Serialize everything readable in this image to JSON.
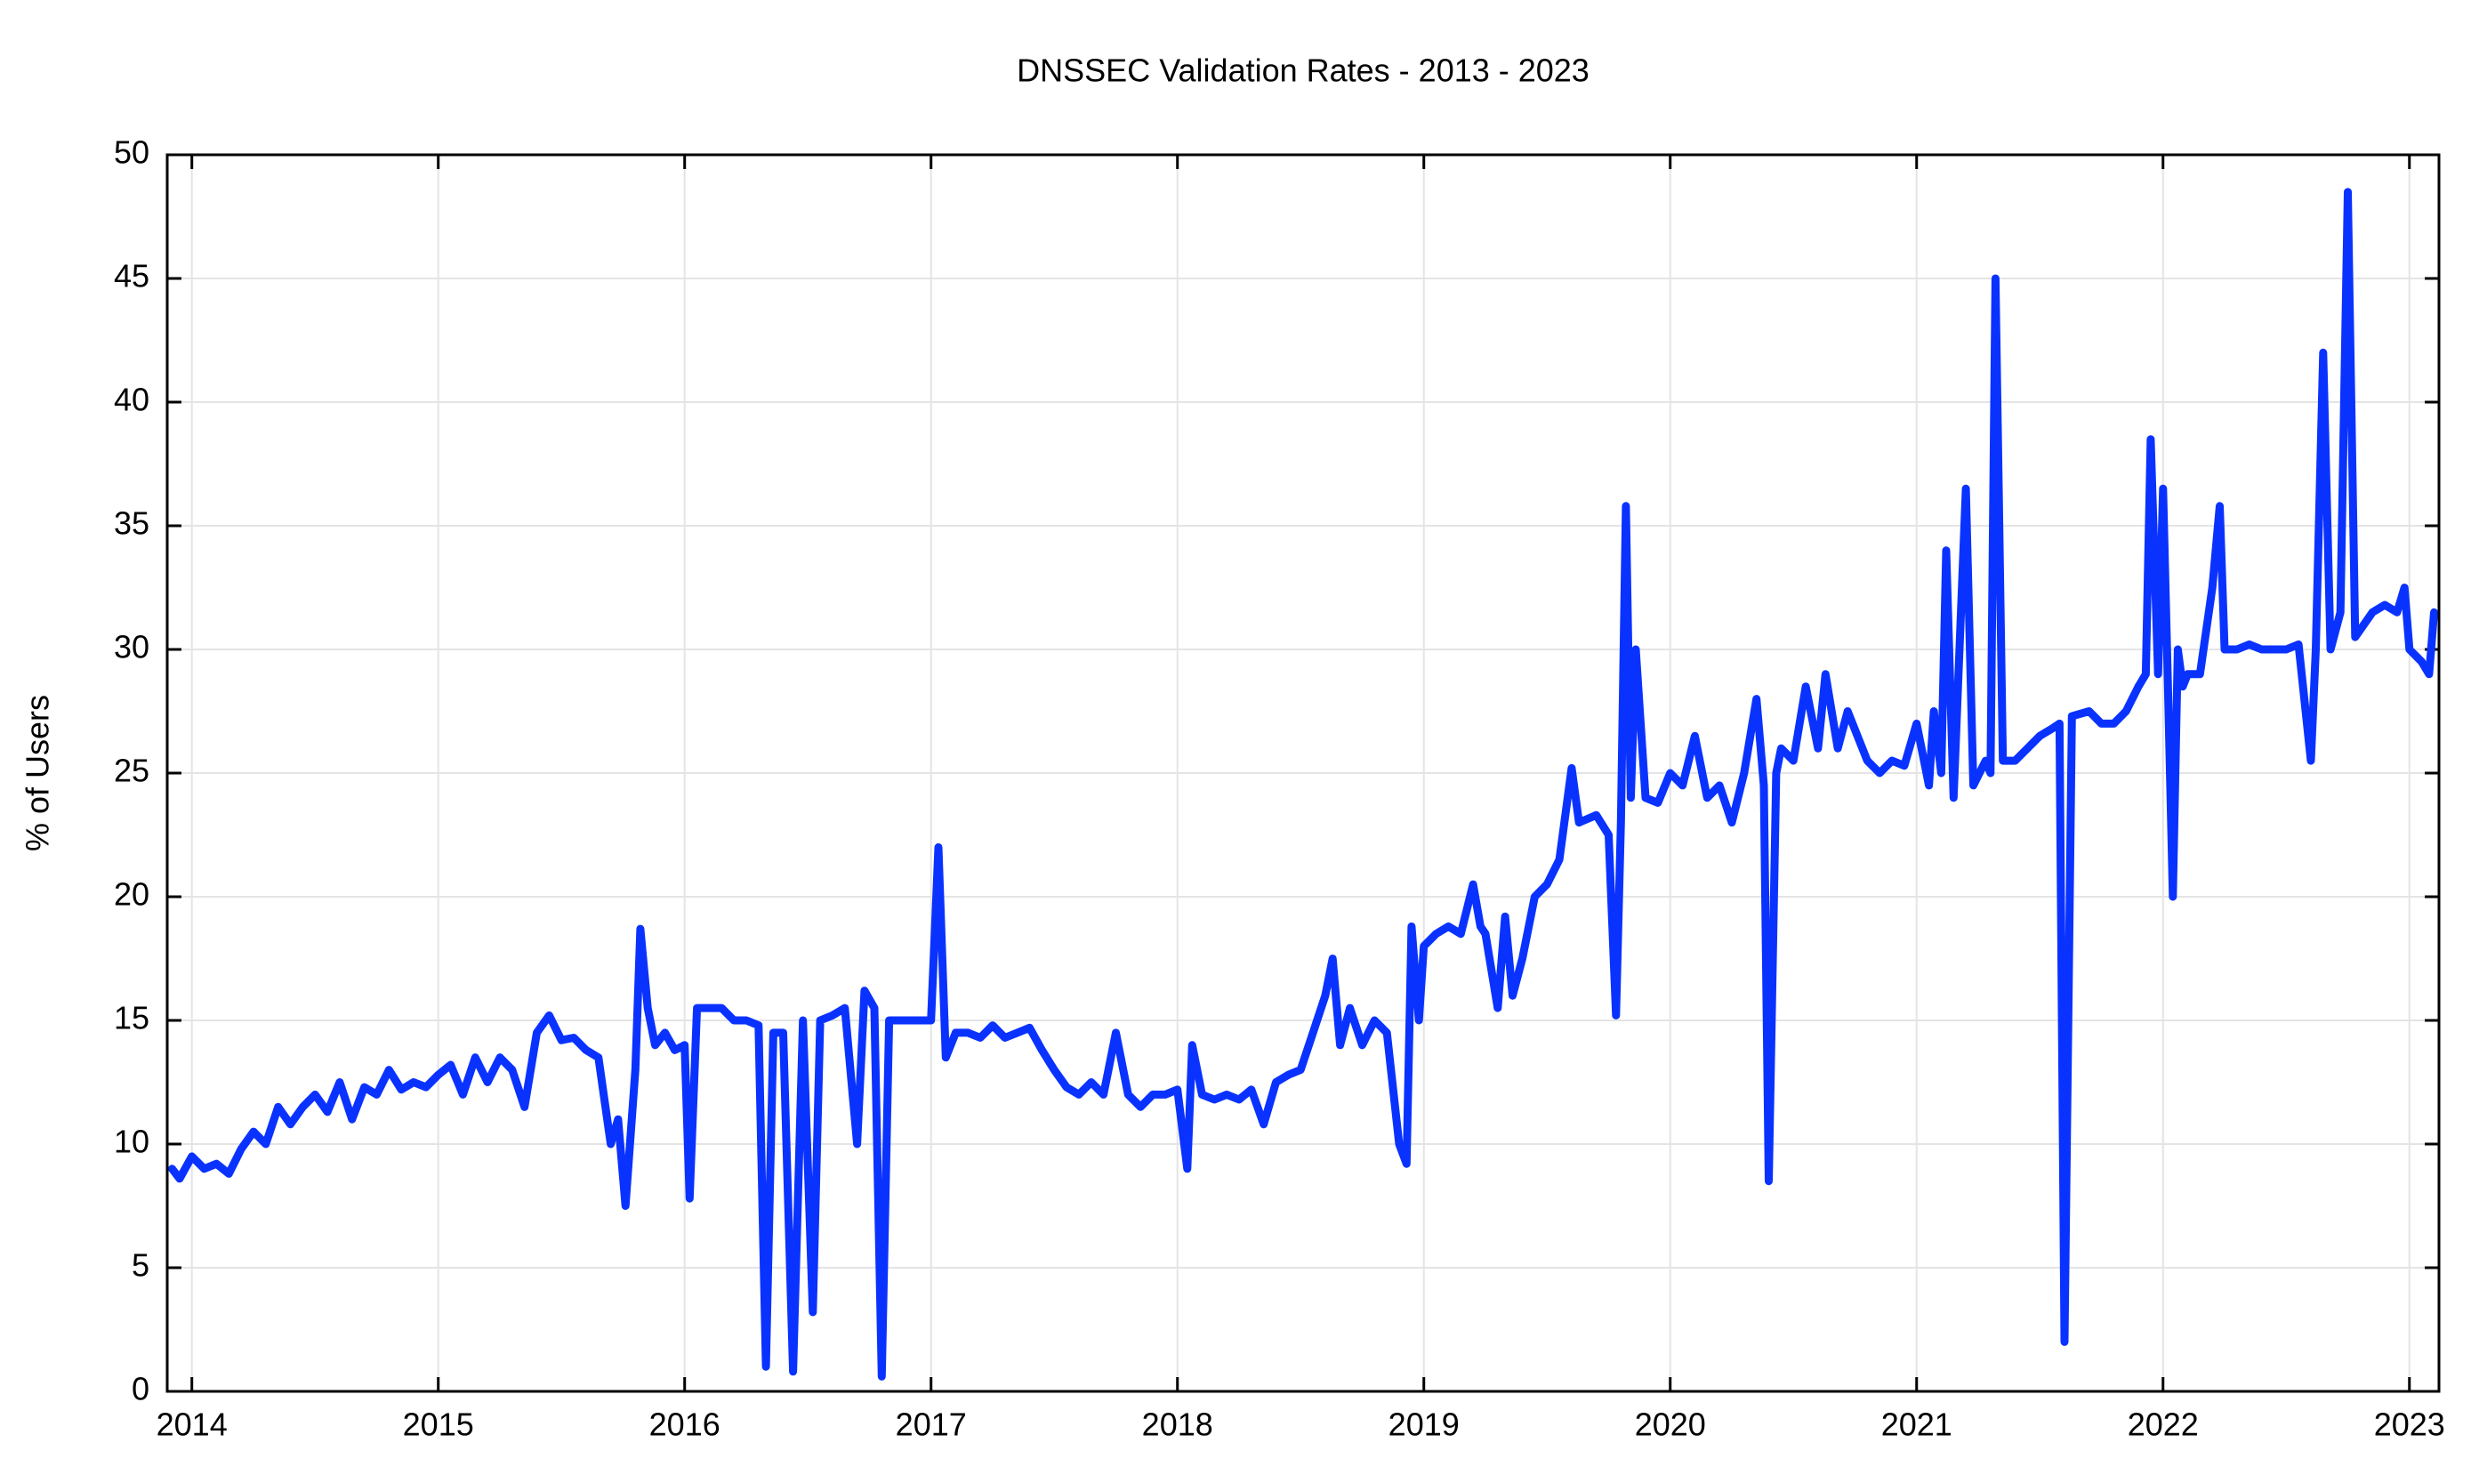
{
  "chart_data": {
    "type": "line",
    "title": "DNSSEC Validation Rates - 2013 - 2023",
    "y_label": "% of Users",
    "color": "#0a32ff",
    "grid": true,
    "xlim": [
      2013.9,
      2023.12
    ],
    "xticks": [
      2014,
      2015,
      2016,
      2017,
      2018,
      2019,
      2020,
      2021,
      2022,
      2023
    ],
    "ylim": [
      0,
      50
    ],
    "yticks": [
      0,
      5,
      10,
      15,
      20,
      25,
      30,
      35,
      40,
      45,
      50
    ],
    "x": [
      2013.92,
      2013.95,
      2014.0,
      2014.05,
      2014.1,
      2014.15,
      2014.2,
      2014.25,
      2014.3,
      2014.35,
      2014.4,
      2014.45,
      2014.5,
      2014.55,
      2014.6,
      2014.65,
      2014.7,
      2014.75,
      2014.8,
      2014.85,
      2014.9,
      2014.95,
      2015.0,
      2015.05,
      2015.1,
      2015.15,
      2015.2,
      2015.25,
      2015.3,
      2015.35,
      2015.4,
      2015.45,
      2015.5,
      2015.55,
      2015.6,
      2015.65,
      2015.7,
      2015.73,
      2015.76,
      2015.8,
      2015.82,
      2015.85,
      2015.88,
      2015.92,
      2015.96,
      2016.0,
      2016.02,
      2016.05,
      2016.1,
      2016.15,
      2016.2,
      2016.25,
      2016.3,
      2016.33,
      2016.36,
      2016.4,
      2016.44,
      2016.48,
      2016.52,
      2016.55,
      2016.6,
      2016.65,
      2016.7,
      2016.73,
      2016.77,
      2016.8,
      2016.83,
      2016.9,
      2016.95,
      2017.0,
      2017.03,
      2017.06,
      2017.1,
      2017.15,
      2017.2,
      2017.25,
      2017.3,
      2017.35,
      2017.4,
      2017.45,
      2017.5,
      2017.55,
      2017.6,
      2017.65,
      2017.7,
      2017.75,
      2017.8,
      2017.85,
      2017.9,
      2017.95,
      2018.0,
      2018.04,
      2018.06,
      2018.1,
      2018.15,
      2018.2,
      2018.25,
      2018.3,
      2018.35,
      2018.4,
      2018.45,
      2018.5,
      2018.55,
      2018.6,
      2018.63,
      2018.66,
      2018.7,
      2018.75,
      2018.8,
      2018.85,
      2018.9,
      2018.93,
      2018.95,
      2018.98,
      2019.0,
      2019.05,
      2019.1,
      2019.15,
      2019.2,
      2019.23,
      2019.25,
      2019.3,
      2019.33,
      2019.36,
      2019.4,
      2019.45,
      2019.5,
      2019.55,
      2019.6,
      2019.63,
      2019.7,
      2019.75,
      2019.78,
      2019.8,
      2019.82,
      2019.84,
      2019.86,
      2019.9,
      2019.95,
      2020.0,
      2020.05,
      2020.1,
      2020.15,
      2020.2,
      2020.25,
      2020.3,
      2020.35,
      2020.38,
      2020.4,
      2020.43,
      2020.45,
      2020.5,
      2020.55,
      2020.6,
      2020.63,
      2020.68,
      2020.72,
      2020.8,
      2020.85,
      2020.9,
      2020.95,
      2021.0,
      2021.05,
      2021.07,
      2021.1,
      2021.12,
      2021.15,
      2021.2,
      2021.23,
      2021.28,
      2021.3,
      2021.32,
      2021.35,
      2021.4,
      2021.45,
      2021.5,
      2021.55,
      2021.58,
      2021.6,
      2021.63,
      2021.7,
      2021.75,
      2021.8,
      2021.85,
      2021.9,
      2021.93,
      2021.95,
      2021.98,
      2022.0,
      2022.02,
      2022.04,
      2022.06,
      2022.08,
      2022.1,
      2022.15,
      2022.2,
      2022.23,
      2022.25,
      2022.3,
      2022.35,
      2022.4,
      2022.5,
      2022.55,
      2022.6,
      2022.62,
      2022.65,
      2022.68,
      2022.72,
      2022.75,
      2022.78,
      2022.85,
      2022.9,
      2022.95,
      2022.98,
      2023.0,
      2023.05,
      2023.08,
      2023.1
    ],
    "values": [
      9.0,
      8.6,
      9.5,
      9.0,
      9.2,
      8.8,
      9.8,
      10.5,
      10.0,
      11.5,
      10.8,
      11.5,
      12.0,
      11.3,
      12.5,
      11.0,
      12.3,
      12.0,
      13.0,
      12.2,
      12.5,
      12.3,
      12.8,
      13.2,
      12.0,
      13.5,
      12.5,
      13.5,
      13.0,
      11.5,
      14.5,
      15.2,
      14.2,
      14.3,
      13.8,
      13.5,
      10.0,
      11.0,
      7.5,
      13.0,
      18.7,
      15.5,
      14.0,
      14.5,
      13.8,
      14.0,
      7.8,
      15.5,
      15.5,
      15.5,
      15.0,
      15.0,
      14.8,
      1.0,
      14.5,
      14.5,
      0.8,
      15.0,
      3.2,
      15.0,
      15.2,
      15.5,
      10.0,
      16.2,
      15.5,
      0.6,
      15.0,
      15.0,
      15.0,
      15.0,
      22.0,
      13.5,
      14.5,
      14.5,
      14.3,
      14.8,
      14.3,
      14.5,
      14.7,
      13.8,
      13.0,
      12.3,
      12.0,
      12.5,
      12.0,
      14.5,
      12.0,
      11.5,
      12.0,
      12.0,
      12.2,
      9.0,
      14.0,
      12.0,
      11.8,
      12.0,
      11.8,
      12.2,
      10.8,
      12.5,
      12.8,
      13.0,
      14.5,
      16.0,
      17.5,
      14.0,
      15.5,
      14.0,
      15.0,
      14.5,
      10.0,
      9.2,
      18.8,
      15.0,
      18.0,
      18.5,
      18.8,
      18.5,
      20.5,
      18.8,
      18.5,
      15.5,
      19.2,
      16.0,
      17.5,
      20.0,
      20.5,
      21.5,
      25.2,
      23.0,
      23.3,
      22.5,
      15.2,
      23.0,
      35.8,
      24.0,
      30.0,
      24.0,
      23.8,
      25.0,
      24.5,
      26.5,
      24.0,
      24.5,
      23.0,
      25.0,
      28.0,
      24.5,
      8.5,
      25.0,
      26.0,
      25.5,
      28.5,
      26.0,
      29.0,
      26.0,
      27.5,
      25.5,
      25.0,
      25.5,
      25.3,
      27.0,
      24.5,
      27.5,
      25.0,
      34.0,
      24.0,
      36.5,
      24.5,
      25.5,
      25.0,
      45.0,
      25.5,
      25.5,
      26.0,
      26.5,
      26.8,
      27.0,
      2.0,
      27.3,
      27.5,
      27.0,
      27.0,
      27.5,
      28.5,
      29.0,
      38.5,
      29.0,
      36.5,
      28.5,
      20.0,
      30.0,
      28.5,
      29.0,
      29.0,
      32.5,
      35.8,
      30.0,
      30.0,
      30.2,
      30.0,
      30.0,
      30.2,
      25.5,
      30.0,
      42.0,
      30.0,
      31.5,
      48.5,
      30.5,
      31.5,
      31.8,
      31.5,
      32.5,
      30.0,
      29.5,
      29.0,
      31.5
    ]
  }
}
